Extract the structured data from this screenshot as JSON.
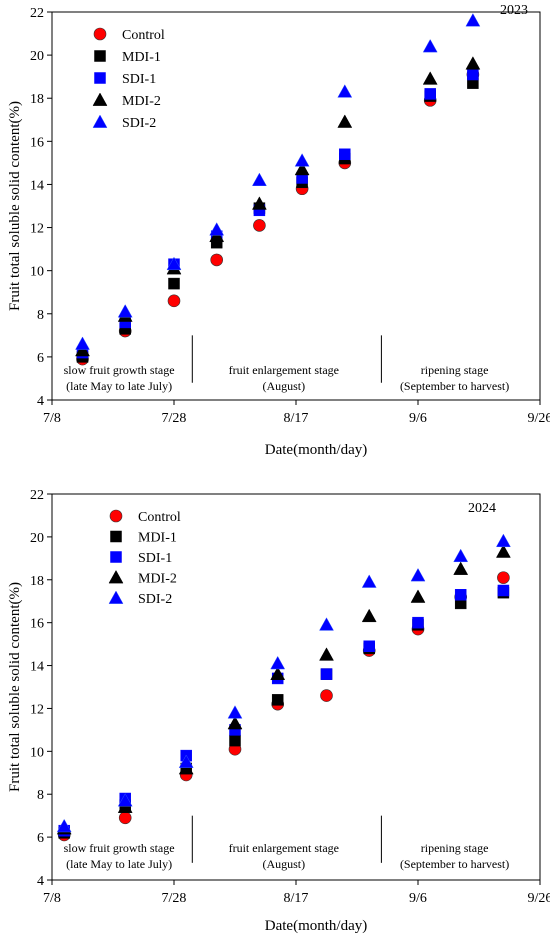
{
  "chart_data": [
    {
      "type": "scatter",
      "year": "2023",
      "xlabel": "Date(month/day)",
      "ylabel": "Fruit total soluble solid content(%)",
      "x_ticks": [
        {
          "date": "07-08",
          "label": "7/8"
        },
        {
          "date": "07-28",
          "label": "7/28"
        },
        {
          "date": "08-17",
          "label": "8/17"
        },
        {
          "date": "09-06",
          "label": "9/6"
        },
        {
          "date": "09-26",
          "label": "9/26"
        }
      ],
      "xlim": [
        "07-08",
        "09-26"
      ],
      "ylim": [
        4,
        22
      ],
      "y_ticks": [
        4,
        6,
        8,
        10,
        12,
        14,
        16,
        18,
        20,
        22
      ],
      "x": [
        "07-13",
        "07-20",
        "07-28",
        "08-04",
        "08-11",
        "08-18",
        "08-25",
        "09-08",
        "09-15"
      ],
      "series": [
        {
          "name": "Control",
          "marker": "circle",
          "color": "#ff0000",
          "values": [
            5.9,
            7.2,
            8.6,
            10.5,
            12.1,
            13.8,
            15.0,
            17.9,
            19.1
          ]
        },
        {
          "name": "MDI-1",
          "marker": "square",
          "color": "#000000",
          "values": [
            6.0,
            7.3,
            9.4,
            11.3,
            12.9,
            14.1,
            15.2,
            18.1,
            18.7
          ]
        },
        {
          "name": "SDI-1",
          "marker": "square",
          "color": "#0000ff",
          "values": [
            6.2,
            7.6,
            10.3,
            11.6,
            12.8,
            14.3,
            15.4,
            18.2,
            19.1
          ]
        },
        {
          "name": "MDI-2",
          "marker": "triangle",
          "color": "#000000",
          "values": [
            6.3,
            7.9,
            10.1,
            11.6,
            13.1,
            14.7,
            16.9,
            18.9,
            19.6
          ]
        },
        {
          "name": "SDI-2",
          "marker": "triangle",
          "color": "#0000ff",
          "values": [
            6.6,
            8.1,
            10.3,
            11.9,
            14.2,
            15.1,
            18.3,
            20.4,
            21.6
          ]
        }
      ],
      "stage_dividers": [
        "07-31",
        "08-31"
      ],
      "stages": [
        {
          "line1": "slow fruit growth stage",
          "line2": "(late May to late July)",
          "center": "07-19"
        },
        {
          "line1": "fruit enlargement stage",
          "line2": "(August)",
          "center": "08-15"
        },
        {
          "line1": "ripening stage",
          "line2": "(September to harvest)",
          "center": "09-12"
        }
      ],
      "legend_position": "top-left",
      "grid": false
    },
    {
      "type": "scatter",
      "year": "2024",
      "xlabel": "Date(month/day)",
      "ylabel": "Fruit total soluble solid content(%)",
      "x_ticks": [
        {
          "date": "07-08",
          "label": "7/8"
        },
        {
          "date": "07-28",
          "label": "7/28"
        },
        {
          "date": "08-17",
          "label": "8/17"
        },
        {
          "date": "09-06",
          "label": "9/6"
        },
        {
          "date": "09-26",
          "label": "9/26"
        }
      ],
      "xlim": [
        "07-08",
        "09-26"
      ],
      "ylim": [
        4,
        22
      ],
      "y_ticks": [
        4,
        6,
        8,
        10,
        12,
        14,
        16,
        18,
        20,
        22
      ],
      "x": [
        "07-10",
        "07-20",
        "07-30",
        "08-07",
        "08-14",
        "08-22",
        "08-29",
        "09-06",
        "09-13",
        "09-20"
      ],
      "series": [
        {
          "name": "Control",
          "marker": "circle",
          "color": "#ff0000",
          "values": [
            6.1,
            6.9,
            8.9,
            10.1,
            12.2,
            12.6,
            14.7,
            15.7,
            17.2,
            18.1
          ]
        },
        {
          "name": "MDI-1",
          "marker": "square",
          "color": "#000000",
          "values": [
            6.2,
            7.5,
            9.2,
            10.5,
            12.4,
            13.6,
            14.8,
            15.9,
            16.9,
            17.4
          ]
        },
        {
          "name": "SDI-1",
          "marker": "square",
          "color": "#0000ff",
          "values": [
            6.3,
            7.8,
            9.8,
            11.0,
            13.4,
            13.6,
            14.9,
            16.0,
            17.3,
            17.5
          ]
        },
        {
          "name": "MDI-2",
          "marker": "triangle",
          "color": "#000000",
          "values": [
            6.4,
            7.4,
            9.2,
            11.3,
            13.6,
            14.5,
            16.3,
            17.2,
            18.5,
            19.3
          ]
        },
        {
          "name": "SDI-2",
          "marker": "triangle",
          "color": "#0000ff",
          "values": [
            6.5,
            7.7,
            9.5,
            11.8,
            14.1,
            15.9,
            17.9,
            18.2,
            19.1,
            19.8
          ]
        }
      ],
      "stage_dividers": [
        "07-31",
        "08-31"
      ],
      "stages": [
        {
          "line1": "slow fruit growth stage",
          "line2": "(late May to late July)",
          "center": "07-19"
        },
        {
          "line1": "fruit enlargement stage",
          "line2": "(August)",
          "center": "08-15"
        },
        {
          "line1": "ripening stage",
          "line2": "(September to harvest)",
          "center": "09-12"
        }
      ],
      "legend_position": "top-left",
      "grid": false
    }
  ]
}
